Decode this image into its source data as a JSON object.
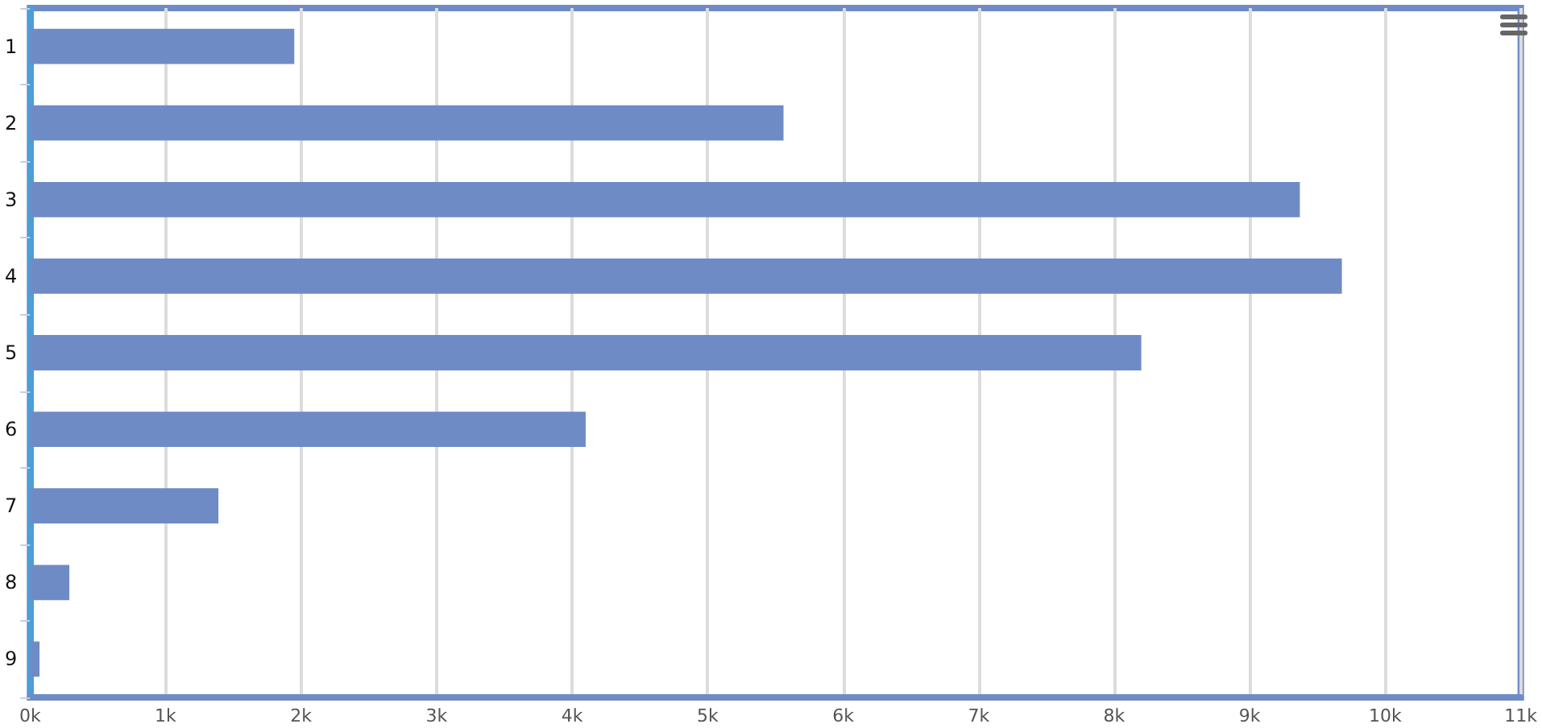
{
  "chart_data": {
    "type": "bar",
    "orientation": "horizontal",
    "categories": [
      "1",
      "2",
      "3",
      "4",
      "5",
      "6",
      "7",
      "8",
      "9"
    ],
    "values": [
      1950,
      5560,
      9370,
      9680,
      8200,
      4100,
      1390,
      290,
      70
    ],
    "color": "#6f8bc6",
    "xlim": [
      0,
      11000
    ],
    "xticks": [
      {
        "value": 0,
        "label": "0k"
      },
      {
        "value": 1000,
        "label": "1k"
      },
      {
        "value": 2000,
        "label": "2k"
      },
      {
        "value": 3000,
        "label": "3k"
      },
      {
        "value": 4000,
        "label": "4k"
      },
      {
        "value": 5000,
        "label": "5k"
      },
      {
        "value": 6000,
        "label": "6k"
      },
      {
        "value": 7000,
        "label": "7k"
      },
      {
        "value": 8000,
        "label": "8k"
      },
      {
        "value": 9000,
        "label": "9k"
      },
      {
        "value": 10000,
        "label": "10k"
      },
      {
        "value": 11000,
        "label": "11k"
      }
    ],
    "grid": "x"
  }
}
